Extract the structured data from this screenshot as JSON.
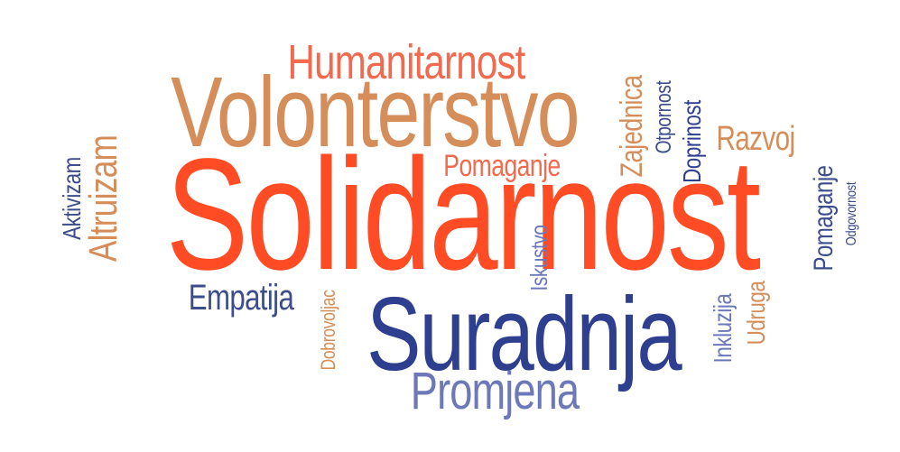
{
  "colors": {
    "red": "#ff4c24",
    "coral": "#f26a4e",
    "tan": "#d58d5a",
    "navy": "#2e3f8f",
    "steel": "#3d4d8c",
    "lavender": "#6d78b8"
  },
  "words": {
    "solidarnost": "Solidarnost",
    "volonterstvo": "Volonterstvo",
    "suradnja": "Suradnja",
    "humanitarnost": "Humanitarnost",
    "promjena": "Promjena",
    "empatija": "Empatija",
    "pomaganje_h": "Pomaganje",
    "razvoj": "Razvoj",
    "altruizam": "Altruizam",
    "aktivizam": "Aktivizam",
    "zajednica": "Zajednica",
    "otpornost": "Otpornost",
    "doprinost": "Doprinost",
    "pomaganje_v": "Pomaganje",
    "odgovornost": "Odgovornost",
    "iskustvo": "Iskustvo",
    "dobrovoljac": "Dobrovoljac",
    "inkluzija": "Inkluzija",
    "udruga": "Udruga"
  }
}
